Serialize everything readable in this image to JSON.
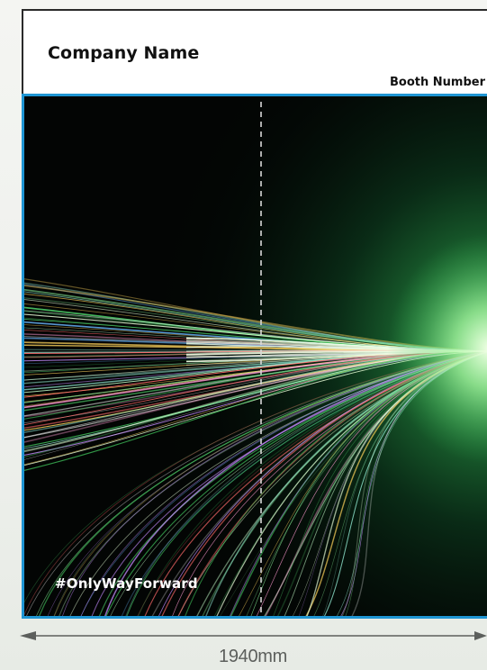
{
  "header": {
    "company_name": "Company Name",
    "booth_number": "Booth Number"
  },
  "graphic": {
    "hashtag": "#OnlyWayForward"
  },
  "dimension": {
    "width_label": "1940mm"
  },
  "colors": {
    "panel_border": "#1f95d3",
    "graphic_background": "#030504",
    "glow": "#3fbf5a",
    "dimension_line": "#5c5f5c"
  },
  "icons": [
    "arrow-left-icon",
    "arrow-right-icon"
  ]
}
